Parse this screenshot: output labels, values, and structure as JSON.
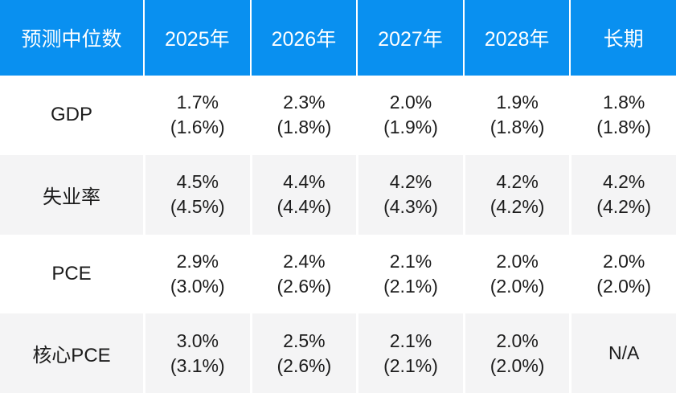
{
  "colors": {
    "header_bg": "#0990f0",
    "header_text": "#ffffff",
    "row_bg": "#ffffff",
    "row_alt_bg": "#f4f4f5",
    "body_text": "#1c1c1c",
    "separator": "#ffffff"
  },
  "chart_data": {
    "type": "table",
    "columns": [
      "预测中位数",
      "2025年",
      "2026年",
      "2027年",
      "2028年",
      "长期"
    ],
    "rows": [
      {
        "label": "GDP",
        "cells": [
          {
            "main": "1.7%",
            "prior": "(1.6%)"
          },
          {
            "main": "2.3%",
            "prior": "(1.8%)"
          },
          {
            "main": "2.0%",
            "prior": "(1.9%)"
          },
          {
            "main": "1.9%",
            "prior": "(1.8%)"
          },
          {
            "main": "1.8%",
            "prior": "(1.8%)"
          }
        ]
      },
      {
        "label": "失业率",
        "cells": [
          {
            "main": "4.5%",
            "prior": "(4.5%)"
          },
          {
            "main": "4.4%",
            "prior": "(4.4%)"
          },
          {
            "main": "4.2%",
            "prior": "(4.3%)"
          },
          {
            "main": "4.2%",
            "prior": "(4.2%)"
          },
          {
            "main": "4.2%",
            "prior": "(4.2%)"
          }
        ]
      },
      {
        "label": "PCE",
        "cells": [
          {
            "main": "2.9%",
            "prior": "(3.0%)"
          },
          {
            "main": "2.4%",
            "prior": "(2.6%)"
          },
          {
            "main": "2.1%",
            "prior": "(2.1%)"
          },
          {
            "main": "2.0%",
            "prior": "(2.0%)"
          },
          {
            "main": "2.0%",
            "prior": "(2.0%)"
          }
        ]
      },
      {
        "label": "核心PCE",
        "cells": [
          {
            "main": "3.0%",
            "prior": "(3.1%)"
          },
          {
            "main": "2.5%",
            "prior": "(2.6%)"
          },
          {
            "main": "2.1%",
            "prior": "(2.1%)"
          },
          {
            "main": "2.0%",
            "prior": "(2.0%)"
          },
          {
            "main": "N/A",
            "prior": ""
          }
        ]
      }
    ]
  }
}
